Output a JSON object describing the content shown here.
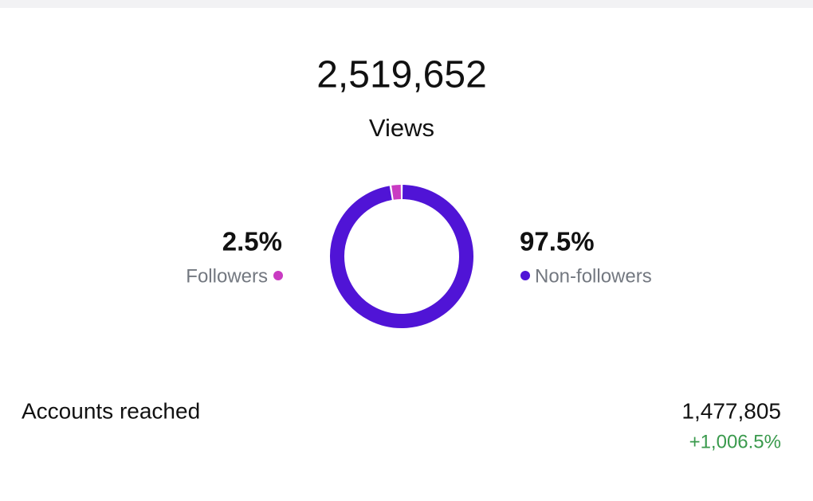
{
  "views": {
    "value": "2,519,652",
    "label": "Views"
  },
  "chart_data": {
    "type": "pie",
    "donut": true,
    "categories": [
      "Followers",
      "Non-followers"
    ],
    "values": [
      2.5,
      97.5
    ],
    "value_labels": [
      "2.5%",
      "97.5%"
    ],
    "colors": [
      "#c93bc2",
      "#5014d6"
    ]
  },
  "accounts_reached": {
    "label": "Accounts reached",
    "value": "1,477,805",
    "change": "+1,006.5%"
  }
}
